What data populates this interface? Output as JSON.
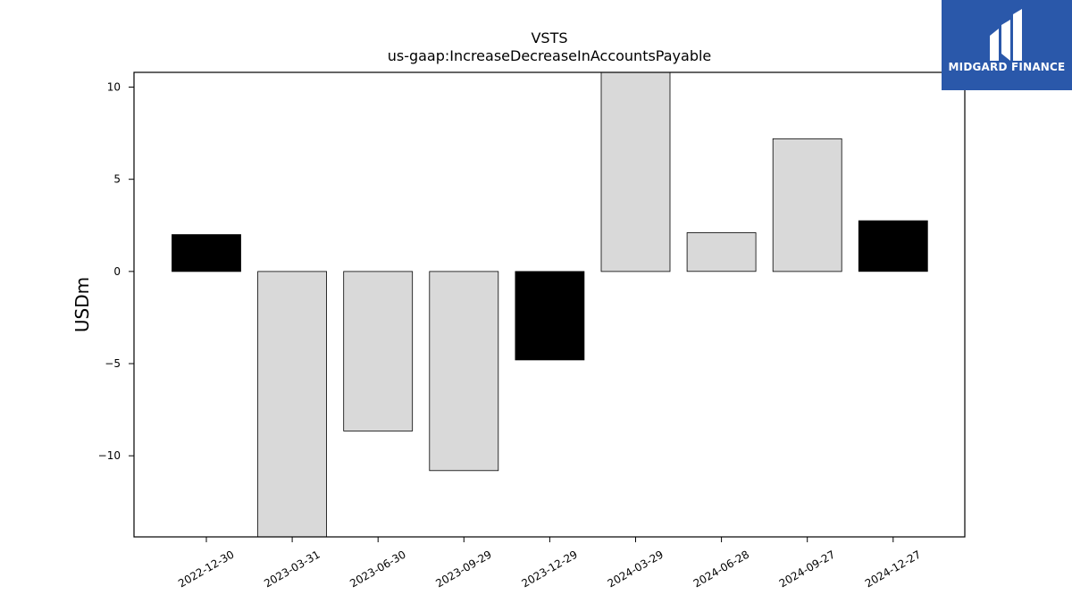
{
  "chart_data": {
    "type": "bar",
    "title": "VSTS",
    "subtitle": "us-gaap:IncreaseDecreaseInAccountsPayable",
    "xlabel": "",
    "ylabel": "USDm",
    "categories": [
      "2022-12-30",
      "2023-03-31",
      "2023-06-30",
      "2023-09-29",
      "2023-12-29",
      "2024-03-29",
      "2024-06-28",
      "2024-09-27",
      "2024-12-27"
    ],
    "values": [
      2.0,
      -14.5,
      -8.65,
      -10.8,
      -4.8,
      10.8,
      2.1,
      7.2,
      2.75
    ],
    "bar_colors": [
      "#000000",
      "#d9d9d9",
      "#d9d9d9",
      "#d9d9d9",
      "#000000",
      "#d9d9d9",
      "#d9d9d9",
      "#d9d9d9",
      "#000000"
    ],
    "ylim": [
      -14.4,
      10.8
    ],
    "yticks": [
      10,
      5,
      0,
      -5,
      -10
    ],
    "ytick_labels": [
      "10",
      "5",
      "0",
      "−5",
      "−10"
    ],
    "grid": false,
    "legend": "none"
  },
  "logo": {
    "text": "MIDGARD FINANCE",
    "background": "#2a58aa"
  }
}
